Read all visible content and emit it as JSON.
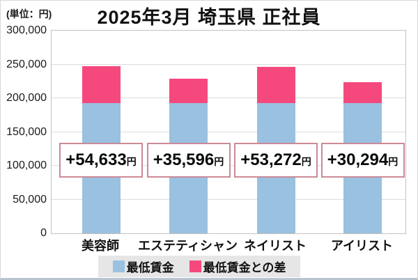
{
  "chart": {
    "title": "2025年3月 埼玉県 正社員",
    "unit_label": "(単位：円)"
  },
  "chart_data": {
    "type": "bar",
    "stacked": true,
    "title": "2025年3月 埼玉県 正社員",
    "unit": "円",
    "categories": [
      "美容師",
      "エステティシャン",
      "ネイリスト",
      "アイリスト"
    ],
    "series": [
      {
        "name": "最低賃金",
        "color": "#9ac1e0",
        "values": [
          193000,
          193000,
          193000,
          193000
        ]
      },
      {
        "name": "最低賃金との差",
        "color": "#f5497e",
        "values": [
          54633,
          35596,
          53272,
          30294
        ]
      }
    ],
    "totals": [
      247633,
      228596,
      246272,
      223294
    ],
    "diff_labels": [
      "+54,633",
      "+35,596",
      "+53,272",
      "+30,294"
    ],
    "diff_label_suffix": "円",
    "ylim": [
      0,
      300000
    ],
    "yticks": [
      0,
      50000,
      100000,
      150000,
      200000,
      250000,
      300000
    ],
    "ytick_labels": [
      "0",
      "50,000",
      "100,000",
      "150,000",
      "200,000",
      "250,000",
      "300,000"
    ],
    "grid": true,
    "legend_position": "bottom"
  },
  "legend": {
    "items": [
      {
        "label": "最低賃金",
        "color": "#9ac1e0"
      },
      {
        "label": "最低賃金との差",
        "color": "#f5497e"
      }
    ]
  },
  "colors": {
    "bar_blue": "#9ac1e0",
    "bar_pink": "#f5497e",
    "box_border": "#cb8997",
    "gridline": "#dcdcdc",
    "legend_bg": "#e6e6e6",
    "text": "#111111"
  }
}
